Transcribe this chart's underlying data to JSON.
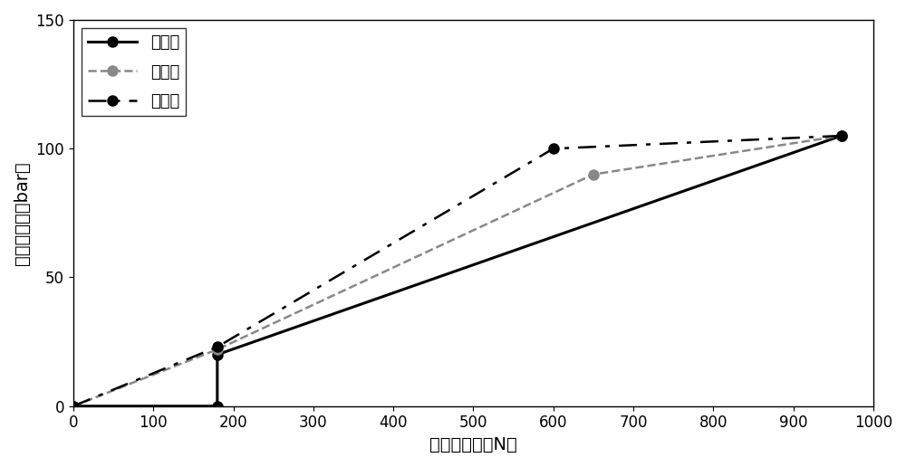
{
  "series": [
    {
      "label": "舒适型",
      "x": [
        0,
        180,
        180,
        960
      ],
      "y": [
        0,
        0,
        20,
        105
      ],
      "color": "#000000",
      "linestyle": "solid",
      "marker": "o",
      "marker_color": "#000000",
      "linewidth": 2.2,
      "markersize": 8
    },
    {
      "label": "一般型",
      "x": [
        0,
        180,
        650,
        960
      ],
      "y": [
        0,
        22,
        90,
        105
      ],
      "color": "#888888",
      "linestyle": "dashed",
      "marker": "o",
      "marker_color": "#888888",
      "linewidth": 1.8,
      "markersize": 8
    },
    {
      "label": "运动型",
      "x": [
        0,
        180,
        600,
        960
      ],
      "y": [
        0,
        23,
        100,
        105
      ],
      "color": "#000000",
      "linestyle": "dashed",
      "marker": "o",
      "marker_color": "#000000",
      "linewidth": 1.8,
      "markersize": 8,
      "dashes": [
        8,
        4,
        2,
        4
      ]
    }
  ],
  "xlabel": "踏板推杆力（N）",
  "ylabel": "主缸液压力（bar）",
  "xlim": [
    0,
    1000
  ],
  "ylim": [
    0,
    150
  ],
  "xticks": [
    0,
    100,
    200,
    300,
    400,
    500,
    600,
    700,
    800,
    900,
    1000
  ],
  "yticks": [
    0,
    50,
    100,
    150
  ],
  "legend_loc": "upper left",
  "background_color": "#ffffff",
  "tick_fontsize": 12,
  "label_fontsize": 14,
  "legend_fontsize": 13
}
